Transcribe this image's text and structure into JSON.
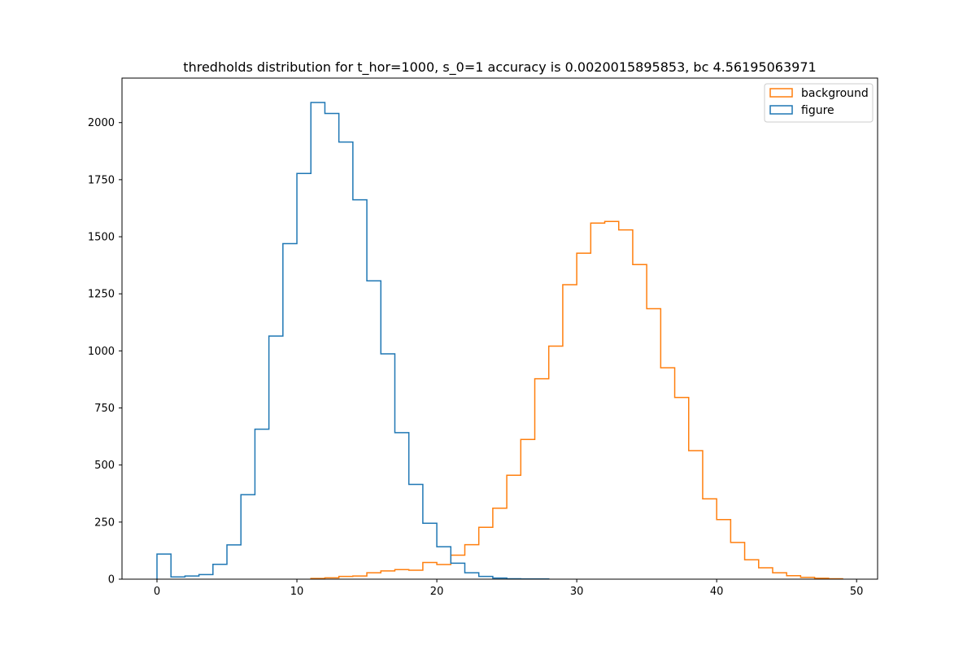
{
  "chart_data": {
    "type": "histogram",
    "title": "thredholds distribution for t_hor=1000, s_0=1 accuracy is 0.0020015895853, bc 4.56195063971",
    "xlabel": "",
    "ylabel": "",
    "xlim": [
      -2.5,
      51.5
    ],
    "ylim": [
      0,
      2195
    ],
    "x_ticks": [
      0,
      10,
      20,
      30,
      40,
      50
    ],
    "x_tick_labels": [
      "0",
      "10",
      "20",
      "30",
      "40",
      "50"
    ],
    "y_ticks": [
      0,
      250,
      500,
      750,
      1000,
      1250,
      1500,
      1750,
      2000
    ],
    "y_tick_labels": [
      "0",
      "250",
      "500",
      "750",
      "1000",
      "1250",
      "1500",
      "1750",
      "2000"
    ],
    "grid": false,
    "legend_position": "top-right",
    "series": [
      {
        "name": "background",
        "color": "#ff7f0e",
        "bin_edges": [
          11,
          12,
          13,
          14,
          15,
          16,
          17,
          18,
          19,
          20,
          21,
          22,
          23,
          24,
          25,
          26,
          27,
          28,
          29,
          30,
          31,
          32,
          33,
          34,
          35,
          36,
          37,
          38,
          39,
          40,
          41,
          42,
          43,
          44,
          45,
          46,
          47,
          48,
          49
        ],
        "counts": [
          3,
          6,
          12,
          14,
          28,
          36,
          42,
          39,
          73,
          64,
          105,
          151,
          227,
          311,
          455,
          612,
          878,
          1021,
          1290,
          1428,
          1560,
          1567,
          1530,
          1378,
          1185,
          926,
          796,
          563,
          352,
          261,
          161,
          85,
          50,
          28,
          15,
          8,
          4,
          2
        ]
      },
      {
        "name": "figure",
        "color": "#1f77b4",
        "bin_edges": [
          0,
          1,
          2,
          3,
          4,
          5,
          6,
          7,
          8,
          9,
          10,
          11,
          12,
          13,
          14,
          15,
          16,
          17,
          18,
          19,
          20,
          21,
          22,
          23,
          24,
          25,
          26,
          27,
          28
        ],
        "counts": [
          110,
          10,
          14,
          20,
          65,
          150,
          370,
          657,
          1065,
          1470,
          1777,
          2088,
          2040,
          1915,
          1662,
          1307,
          987,
          642,
          415,
          245,
          142,
          70,
          28,
          12,
          5,
          2,
          1,
          1
        ]
      }
    ]
  }
}
